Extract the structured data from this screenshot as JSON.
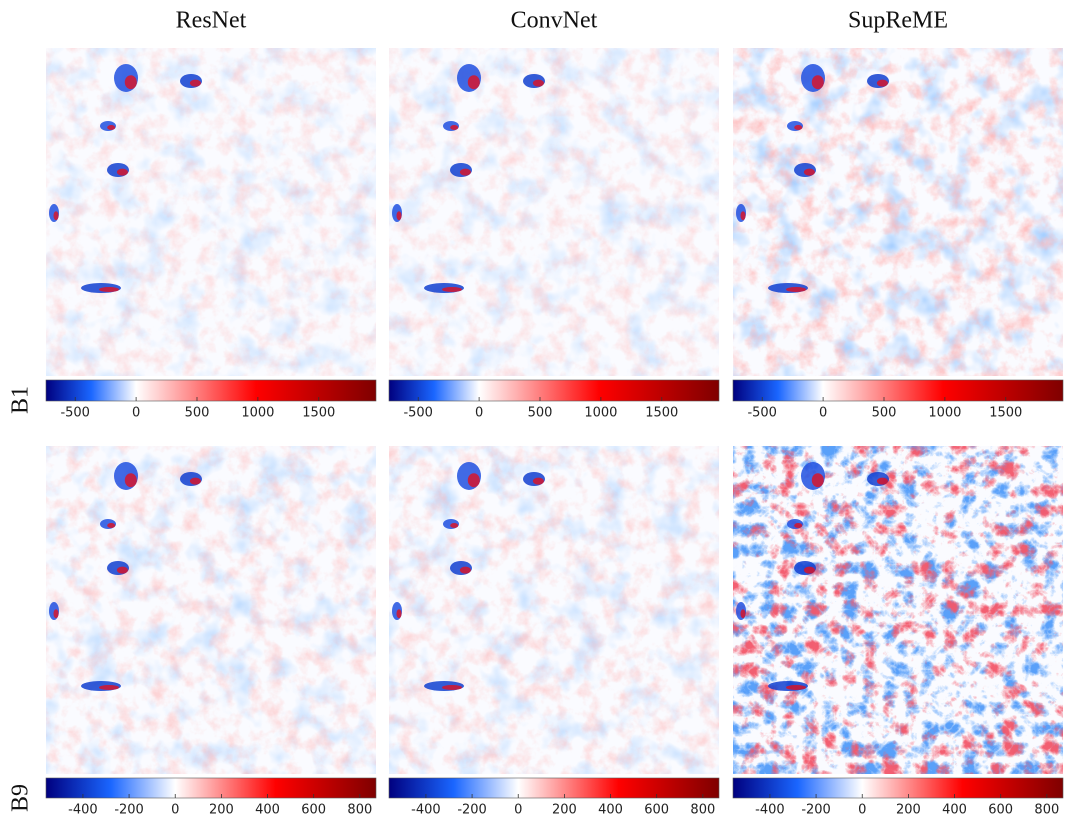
{
  "columns": [
    "ResNet",
    "ConvNet",
    "SupReME"
  ],
  "rows": [
    {
      "label": "B1",
      "colorbar": {
        "lim": [
          -740,
          1970
        ],
        "ticks": [
          -500,
          0,
          500,
          1000,
          1500
        ]
      }
    },
    {
      "label": "B9",
      "colorbar": {
        "lim": [
          -560,
          870
        ],
        "ticks": [
          -400,
          -200,
          0,
          200,
          400,
          600,
          800
        ]
      }
    }
  ]
}
